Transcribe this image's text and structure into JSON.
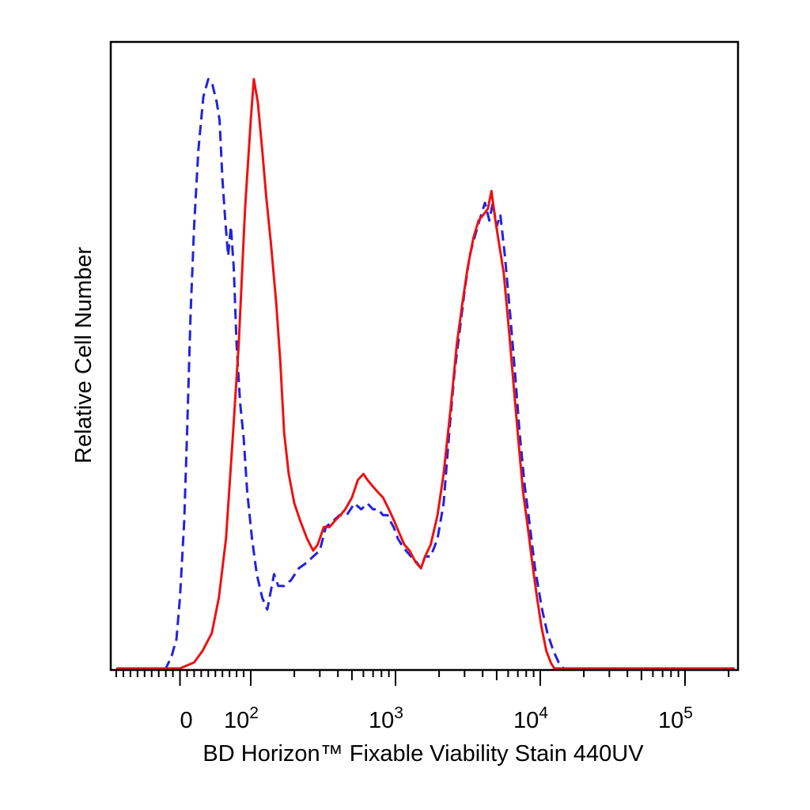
{
  "chart_data": {
    "type": "line",
    "title": "",
    "xlabel": "BD Horizon™ Fixable Viability Stain 440UV",
    "ylabel": "Relative Cell Number",
    "x_scale": "biexponential",
    "xlim": [
      -90,
      220000
    ],
    "ylim": [
      0,
      100
    ],
    "grid": false,
    "legend": "none",
    "x_tick_labels": [
      {
        "value": 0,
        "text": "0"
      },
      {
        "value": 100,
        "base": "10",
        "exp": "2"
      },
      {
        "value": 1000,
        "base": "10",
        "exp": "3"
      },
      {
        "value": 10000,
        "base": "10",
        "exp": "4"
      },
      {
        "value": 100000,
        "base": "10",
        "exp": "5"
      }
    ],
    "series": [
      {
        "color": "#2222dd",
        "style": "dashed",
        "points": [
          [
            -90,
            0
          ],
          [
            -20,
            0
          ],
          [
            -12,
            2
          ],
          [
            -5,
            5
          ],
          [
            0,
            12
          ],
          [
            6,
            25
          ],
          [
            10,
            40
          ],
          [
            15,
            60
          ],
          [
            20,
            75
          ],
          [
            26,
            88
          ],
          [
            33,
            97
          ],
          [
            40,
            100
          ],
          [
            46,
            99
          ],
          [
            52,
            96
          ],
          [
            56,
            93
          ],
          [
            60,
            83
          ],
          [
            64,
            76
          ],
          [
            68,
            70
          ],
          [
            72,
            75
          ],
          [
            76,
            68
          ],
          [
            80,
            55
          ],
          [
            85,
            45
          ],
          [
            90,
            39
          ],
          [
            95,
            30
          ],
          [
            102,
            22
          ],
          [
            110,
            16
          ],
          [
            120,
            12
          ],
          [
            130,
            10
          ],
          [
            145,
            16
          ],
          [
            155,
            14
          ],
          [
            170,
            14
          ],
          [
            190,
            15
          ],
          [
            215,
            17
          ],
          [
            245,
            18
          ],
          [
            270,
            19
          ],
          [
            300,
            20
          ],
          [
            330,
            24
          ],
          [
            370,
            25
          ],
          [
            410,
            26
          ],
          [
            460,
            26
          ],
          [
            520,
            28
          ],
          [
            580,
            27
          ],
          [
            640,
            28
          ],
          [
            700,
            27
          ],
          [
            760,
            27
          ],
          [
            820,
            26
          ],
          [
            880,
            26
          ],
          [
            920,
            25
          ],
          [
            970,
            24
          ],
          [
            1040,
            22
          ],
          [
            1100,
            21
          ],
          [
            1180,
            20
          ],
          [
            1280,
            19
          ],
          [
            1400,
            18
          ],
          [
            1500,
            17
          ],
          [
            1600,
            19
          ],
          [
            1750,
            19
          ],
          [
            1950,
            22
          ],
          [
            2150,
            28
          ],
          [
            2350,
            40
          ],
          [
            2550,
            50
          ],
          [
            2800,
            58
          ],
          [
            3000,
            64
          ],
          [
            3250,
            70
          ],
          [
            3500,
            73
          ],
          [
            3800,
            76
          ],
          [
            4150,
            79
          ],
          [
            4450,
            76
          ],
          [
            4700,
            79
          ],
          [
            5000,
            75
          ],
          [
            5300,
            77
          ],
          [
            5700,
            70
          ],
          [
            6200,
            60
          ],
          [
            6700,
            50
          ],
          [
            7200,
            40
          ],
          [
            7800,
            31
          ],
          [
            8400,
            25
          ],
          [
            9200,
            17
          ],
          [
            10300,
            10
          ],
          [
            11200,
            6
          ],
          [
            12300,
            3
          ],
          [
            13400,
            1
          ],
          [
            14500,
            0
          ],
          [
            220000,
            0
          ]
        ]
      },
      {
        "color": "#ee1111",
        "style": "solid",
        "points": [
          [
            -90,
            0
          ],
          [
            0,
            0
          ],
          [
            20,
            1
          ],
          [
            32,
            3
          ],
          [
            45,
            6
          ],
          [
            55,
            12
          ],
          [
            65,
            22
          ],
          [
            74,
            38
          ],
          [
            83,
            55
          ],
          [
            92,
            78
          ],
          [
            100,
            93
          ],
          [
            105,
            100
          ],
          [
            112,
            96
          ],
          [
            120,
            88
          ],
          [
            128,
            80
          ],
          [
            138,
            72
          ],
          [
            150,
            62
          ],
          [
            160,
            52
          ],
          [
            170,
            40
          ],
          [
            183,
            33
          ],
          [
            200,
            28
          ],
          [
            220,
            25
          ],
          [
            245,
            22
          ],
          [
            270,
            20
          ],
          [
            290,
            21
          ],
          [
            320,
            24
          ],
          [
            350,
            24
          ],
          [
            380,
            25
          ],
          [
            415,
            26
          ],
          [
            450,
            27
          ],
          [
            500,
            29
          ],
          [
            550,
            32
          ],
          [
            600,
            33
          ],
          [
            640,
            32
          ],
          [
            690,
            31
          ],
          [
            750,
            30
          ],
          [
            820,
            29
          ],
          [
            900,
            27
          ],
          [
            980,
            25
          ],
          [
            1060,
            23
          ],
          [
            1150,
            21
          ],
          [
            1250,
            20
          ],
          [
            1380,
            18
          ],
          [
            1500,
            17
          ],
          [
            1600,
            19
          ],
          [
            1750,
            21
          ],
          [
            1950,
            26
          ],
          [
            2150,
            33
          ],
          [
            2400,
            44
          ],
          [
            2650,
            55
          ],
          [
            2900,
            62
          ],
          [
            3150,
            68
          ],
          [
            3450,
            73
          ],
          [
            3750,
            76
          ],
          [
            4050,
            77
          ],
          [
            4350,
            78
          ],
          [
            4600,
            81
          ],
          [
            4900,
            76
          ],
          [
            5200,
            72
          ],
          [
            5600,
            67
          ],
          [
            6100,
            57
          ],
          [
            6600,
            47
          ],
          [
            7100,
            38
          ],
          [
            7600,
            30
          ],
          [
            8200,
            24
          ],
          [
            8800,
            18
          ],
          [
            9500,
            12
          ],
          [
            10200,
            7
          ],
          [
            11000,
            3
          ],
          [
            11800,
            1
          ],
          [
            12500,
            0
          ],
          [
            220000,
            0
          ]
        ]
      }
    ]
  }
}
